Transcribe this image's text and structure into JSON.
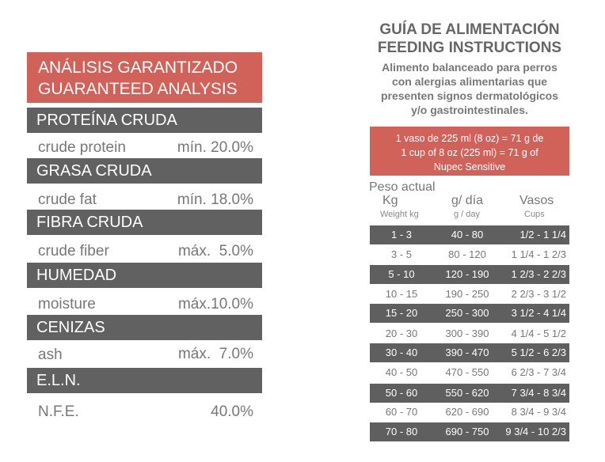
{
  "analysis": {
    "header_es": "ANÁLISIS GARANTIZADO",
    "header_en": "GUARANTEED ANALYSIS",
    "rows": [
      {
        "category": "PROTEÍNA CRUDA",
        "label": "crude protein",
        "value": "mín. 20.0%"
      },
      {
        "category": "GRASA CRUDA",
        "label": "crude fat",
        "value": "mín. 18.0%"
      },
      {
        "category": "FIBRA CRUDA",
        "label": "crude fiber",
        "value": "máx.  5.0%"
      },
      {
        "category": "HUMEDAD",
        "label": "moisture",
        "value": "máx.10.0%"
      },
      {
        "category": "CENIZAS",
        "label": "ash",
        "value": "máx.  7.0%"
      },
      {
        "category": "E.L.N.",
        "label": "N.F.E.",
        "value": "40.0%"
      }
    ]
  },
  "feeding": {
    "title_es": "GUÍA DE ALIMENTACIÓN",
    "title_en": "FEEDING INSTRUCTIONS",
    "subtitle_lines": [
      "Alimento balanceado para perros",
      "con alergias alimentarias que",
      "presenten signos dermatológicos",
      "y/o gastrointestinales."
    ],
    "measure_lines": [
      "1 vaso de 225 ml (8 oz) = 71 g de",
      "1 cup of 8 oz (225 ml) = 71 g of",
      "Nupec Sensitive"
    ],
    "headers": {
      "weight_es": "Peso actual",
      "kg": "Kg",
      "kg_en": "Weight kg",
      "g_day": "g/ día",
      "g_day_en": "g / day",
      "cups_es": "Vasos",
      "cups_en": "Cups"
    },
    "rows": [
      {
        "kg": "1 - 3",
        "g": "40  -  80",
        "cups": "1/2 - 1 1/4"
      },
      {
        "kg": "3 - 5",
        "g": "80  -  120",
        "cups": "1 1/4 - 1 2/3"
      },
      {
        "kg": "5 - 10",
        "g": "120  -  190",
        "cups": "1 2/3 - 2 2/3"
      },
      {
        "kg": "10 - 15",
        "g": "190  -  250",
        "cups": "2 2/3 - 3 1/2"
      },
      {
        "kg": "15 - 20",
        "g": "250  -  300",
        "cups": "3 1/2 - 4 1/4"
      },
      {
        "kg": "20 - 30",
        "g": "300  -  390",
        "cups": "4 1/4 - 5 1/2"
      },
      {
        "kg": "30 - 40",
        "g": "390  -  470",
        "cups": "5 1/2 - 6 2/3"
      },
      {
        "kg": "40 - 50",
        "g": "470  -  550",
        "cups": "6 2/3  -  7 3/4"
      },
      {
        "kg": "50 - 60",
        "g": "550  -  620",
        "cups": "7 3/4 - 8 3/4"
      },
      {
        "kg": "60 - 70",
        "g": "620  -  690",
        "cups": "8 3/4 - 9 3/4"
      },
      {
        "kg": "70 - 80",
        "g": "690  -  750",
        "cups": "9 3/4 - 10 2/3"
      }
    ]
  },
  "colors": {
    "accent": "#d0625a",
    "dark_row": "#5f5f5f"
  }
}
